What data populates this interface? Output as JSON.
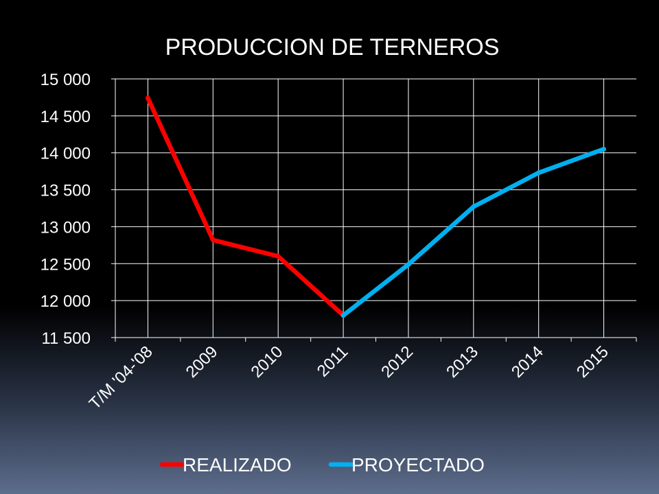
{
  "chart_data": {
    "type": "line",
    "title": "PRODUCCION DE TERNEROS",
    "categories": [
      "T/M '04-'08",
      "2009",
      "2010",
      "2011",
      "2012",
      "2013",
      "2014",
      "2015"
    ],
    "ylim": [
      11500,
      15000
    ],
    "yticks": [
      11500,
      12000,
      12500,
      13000,
      13500,
      14000,
      14500,
      15000
    ],
    "ytick_labels": [
      "11 500",
      "12 000",
      "12 500",
      "13 000",
      "13 500",
      "14 000",
      "14 500",
      "15 000"
    ],
    "grid": true,
    "legend_position": "bottom",
    "series": [
      {
        "name": "REALIZADO",
        "color": "#ff0000",
        "values": [
          14740,
          12820,
          12600,
          11800,
          null,
          null,
          null,
          null
        ]
      },
      {
        "name": "PROYECTADO",
        "color": "#00b0f0",
        "values": [
          null,
          null,
          null,
          11800,
          12490,
          13270,
          13730,
          14050
        ]
      }
    ]
  }
}
